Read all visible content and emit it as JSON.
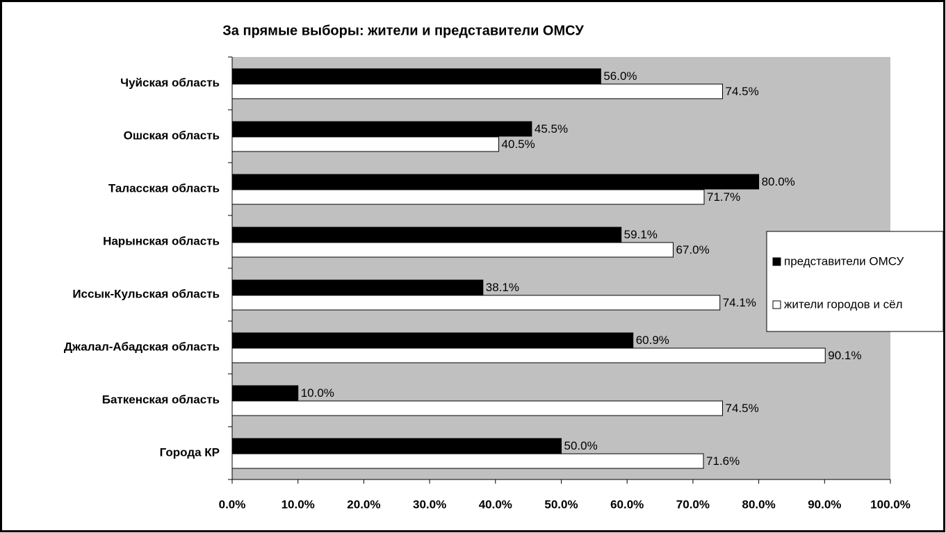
{
  "chart_data": {
    "type": "barh",
    "title": "За прямые выборы: жители и представители ОМСУ",
    "categories": [
      "Чуйская область",
      "Ошская область",
      "Таласская область",
      "Нарынская область",
      "Иссык-Кульская область",
      "Джалал-Абадская область",
      "Баткенская область",
      "Города КР"
    ],
    "series": [
      {
        "name": "представители ОМСУ",
        "color": "#000000",
        "values": [
          56.0,
          45.5,
          80.0,
          59.1,
          38.1,
          60.9,
          10.0,
          50.0
        ],
        "value_labels": [
          "56.0%",
          "45.5%",
          "80.0%",
          "59.1%",
          "38.1%",
          "60.9%",
          "10.0%",
          "50.0%"
        ]
      },
      {
        "name": "жители городов и сёл",
        "color": "#ffffff",
        "values": [
          74.5,
          40.5,
          71.7,
          67.0,
          74.1,
          90.1,
          74.5,
          71.6
        ],
        "value_labels": [
          "74.5%",
          "40.5%",
          "71.7%",
          "67.0%",
          "74.1%",
          "90.1%",
          "74.5%",
          "71.6%"
        ]
      }
    ],
    "xlim": [
      0,
      100
    ],
    "xticks": [
      {
        "value": 0,
        "label": "0.0%"
      },
      {
        "value": 10,
        "label": "10.0%"
      },
      {
        "value": 20,
        "label": "20.0%"
      },
      {
        "value": 30,
        "label": "30.0%"
      },
      {
        "value": 40,
        "label": "40.0%"
      },
      {
        "value": 50,
        "label": "50.0%"
      },
      {
        "value": 60,
        "label": "60.0%"
      },
      {
        "value": 70,
        "label": "70.0%"
      },
      {
        "value": 80,
        "label": "80.0%"
      },
      {
        "value": 90,
        "label": "90.0%"
      },
      {
        "value": 100,
        "label": "100.0%"
      }
    ],
    "plot_background": "#c0c0c0",
    "legend": "right"
  }
}
